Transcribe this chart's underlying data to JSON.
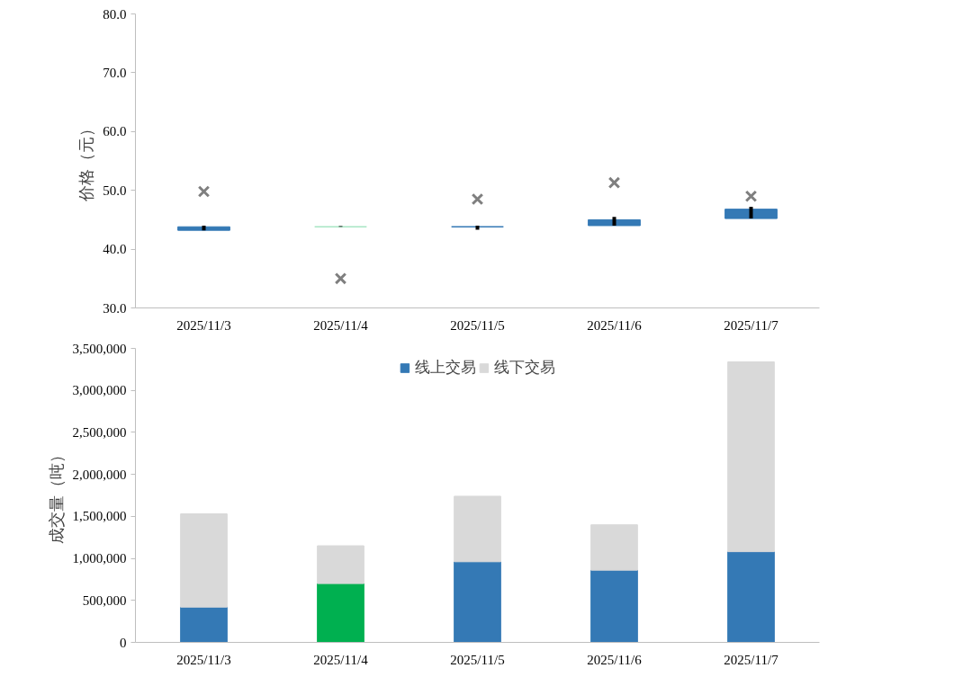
{
  "chart_data": [
    {
      "type": "candlestick",
      "ylabel": "价格（元）",
      "categories": [
        "2025/11/3",
        "2025/11/4",
        "2025/11/5",
        "2025/11/6",
        "2025/11/7"
      ],
      "ohlc": [
        [
          43.2,
          44.0,
          43.2,
          43.8
        ],
        [
          43.8,
          43.9,
          43.8,
          43.8
        ],
        [
          43.8,
          44.0,
          43.3,
          43.8
        ],
        [
          44.0,
          45.5,
          44.0,
          45.0
        ],
        [
          45.2,
          47.2,
          45.2,
          46.8
        ]
      ],
      "colors": [
        "#3479b5",
        "#a8e6c4",
        "#3479b5",
        "#3479b5",
        "#3479b5"
      ],
      "series": [
        {
          "type": "scatter",
          "color": "#7f7f7f",
          "marker": "cross",
          "x": [
            "2025/11/3",
            "2025/11/4",
            "2025/11/5",
            "2025/11/6",
            "2025/11/7"
          ],
          "values": [
            49.8,
            35.0,
            48.5,
            51.3,
            49.0
          ]
        }
      ],
      "ylim": [
        30,
        80
      ],
      "yticks": [
        {
          "value": 30,
          "label": "30.0"
        },
        {
          "value": 40,
          "label": "40.0"
        },
        {
          "value": 50,
          "label": "50.0"
        },
        {
          "value": 60,
          "label": "60.0"
        },
        {
          "value": 70,
          "label": "70.0"
        },
        {
          "value": 80,
          "label": "80.0"
        }
      ]
    },
    {
      "type": "bar",
      "stacked": true,
      "ylabel": "成交量（吨）",
      "legend": "top",
      "categories": [
        "2025/11/3",
        "2025/11/4",
        "2025/11/5",
        "2025/11/6",
        "2025/11/7"
      ],
      "series": [
        {
          "name": "线上交易",
          "color": "#3479b5",
          "colors": [
            "#3479b5",
            "#00b050",
            "#3479b5",
            "#3479b5",
            "#3479b5"
          ],
          "values": [
            420000,
            700000,
            960000,
            860000,
            1080000
          ]
        },
        {
          "name": "线下交易",
          "color": "#d9d9d9",
          "values": [
            1110000,
            450000,
            780000,
            540000,
            2260000
          ]
        }
      ],
      "ylim": [
        0,
        3500000
      ],
      "yticks": [
        0,
        {
          "value": 500000,
          "label": "500,000"
        },
        {
          "value": 1000000,
          "label": "1,000,000"
        },
        {
          "value": 1500000,
          "label": "1,500,000"
        },
        {
          "value": 2000000,
          "label": "2,000,000"
        },
        {
          "value": 2500000,
          "label": "2,500,000"
        },
        {
          "value": 3000000,
          "label": "3,000,000"
        },
        {
          "value": 3500000,
          "label": "3,500,000"
        }
      ]
    }
  ]
}
